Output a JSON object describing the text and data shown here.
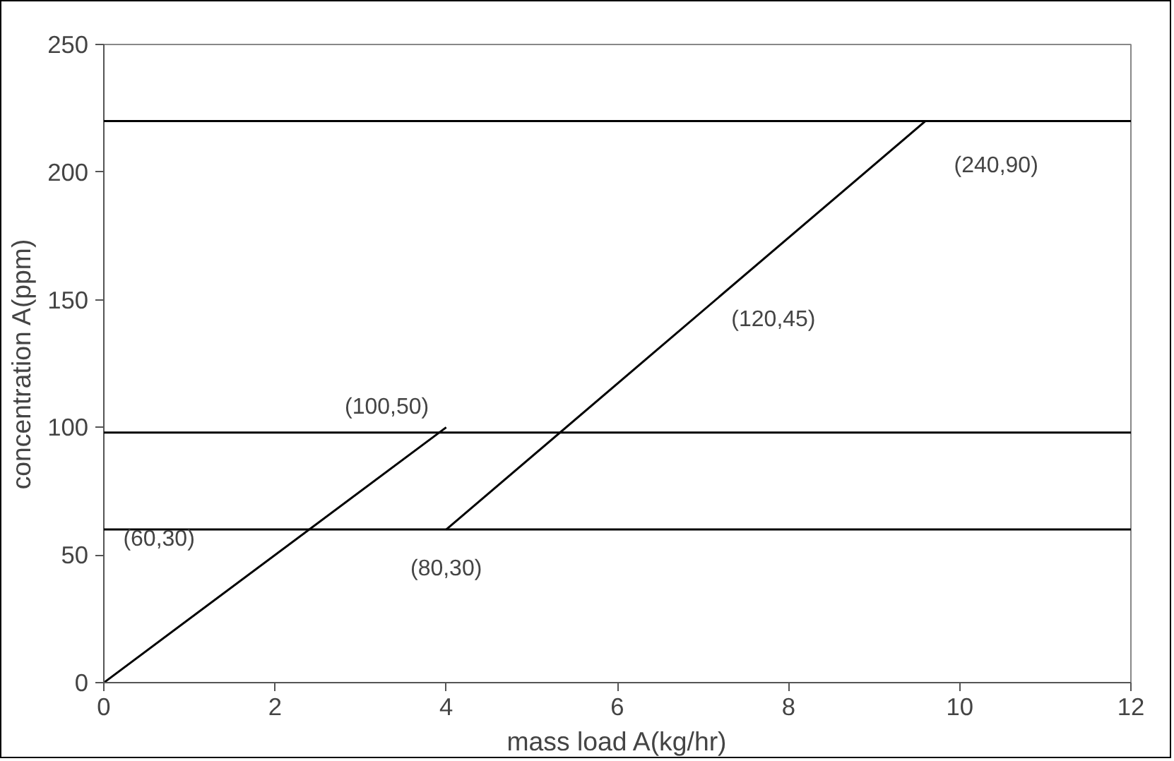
{
  "chart_data": {
    "type": "line",
    "xlabel": "mass load A(kg/hr)",
    "ylabel": "concentration A(ppm)",
    "series": [
      {
        "color": "#000000",
        "x": [
          0,
          4
        ],
        "values": [
          0,
          100
        ]
      },
      {
        "color": "#000000",
        "x": [
          4,
          9.6
        ],
        "values": [
          60,
          220
        ]
      }
    ],
    "ref_lines": [
      {
        "axis": "y",
        "value": 220,
        "color": "#000000"
      },
      {
        "axis": "y",
        "value": 98,
        "color": "#000000"
      },
      {
        "axis": "y",
        "value": 60,
        "color": "#000000"
      }
    ],
    "annotations": [
      "(60,30)",
      "(100,50)",
      "(80,30)",
      "(120,45)",
      "(240,90)"
    ],
    "xlim": [
      0,
      12
    ],
    "xticks": [
      0,
      2,
      4,
      6,
      8,
      10,
      12
    ],
    "ylim": [
      0,
      250
    ],
    "yticks": [
      0,
      50,
      100,
      150,
      200,
      250
    ],
    "grid": false,
    "marker": "none",
    "line_style": "solid"
  }
}
